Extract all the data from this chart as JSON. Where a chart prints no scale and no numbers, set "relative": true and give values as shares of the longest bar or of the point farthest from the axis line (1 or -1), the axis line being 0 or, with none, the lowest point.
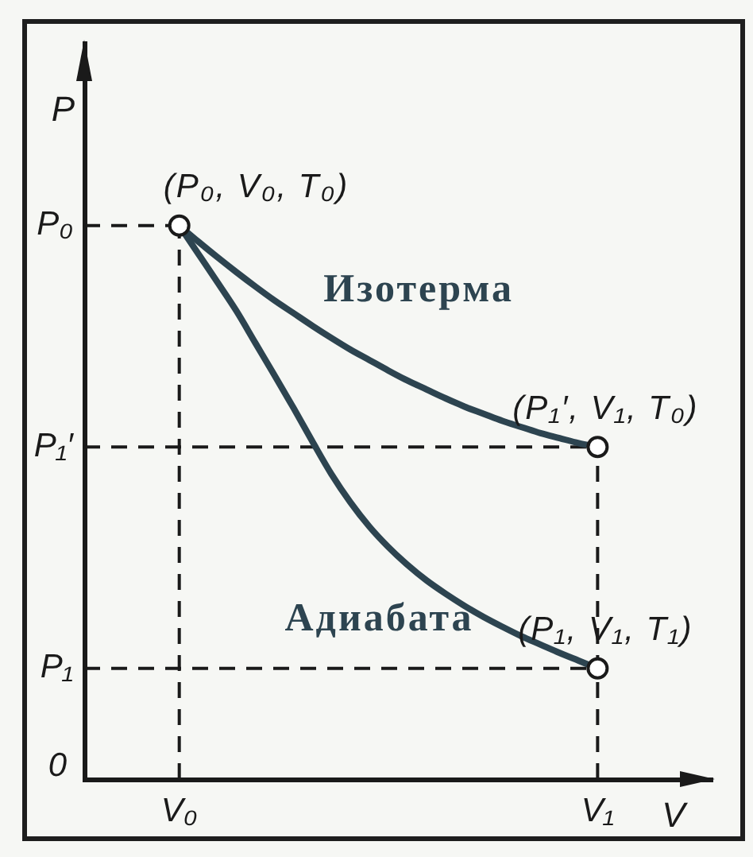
{
  "chart_data": {
    "type": "line",
    "relative": true,
    "xlabel": "V",
    "ylabel": "P",
    "categories": [
      null,
      null,
      null,
      null,
      null,
      "V₀",
      null,
      null,
      null,
      null,
      null,
      null,
      null,
      null,
      null,
      null,
      null,
      null,
      null,
      null,
      null,
      null,
      null,
      null,
      null,
      null,
      null,
      "V₁",
      null,
      null,
      null,
      null,
      null,
      null
    ],
    "series": [
      {
        "name": "Изотерма",
        "color": "#2d4450",
        "values": [
          null,
          null,
          null,
          null,
          null,
          1,
          0.971,
          0.943,
          0.916,
          0.89,
          0.865,
          0.842,
          0.819,
          0.797,
          0.776,
          0.757,
          0.738,
          0.72,
          0.704,
          0.688,
          0.673,
          0.66,
          0.647,
          0.636,
          0.625,
          0.616,
          0.607,
          0.6,
          null,
          null,
          null,
          null,
          null,
          null
        ]
      },
      {
        "name": "Адиабата",
        "color": "#2d4450",
        "values": [
          null,
          null,
          null,
          null,
          null,
          1,
          0.949,
          0.898,
          0.846,
          0.788,
          0.73,
          0.671,
          0.61,
          0.551,
          0.5,
          0.456,
          0.419,
          0.387,
          0.359,
          0.335,
          0.313,
          0.293,
          0.275,
          0.258,
          0.243,
          0.228,
          0.214,
          0.2,
          null,
          null,
          null,
          null,
          null,
          null
        ]
      },
      {
        "type": "line",
        "color": "#1a1a1a",
        "line_style": "dashed",
        "x": [
          "V₁",
          "V₁"
        ],
        "values": [
          0,
          0.6
        ]
      },
      {
        "type": "scatter",
        "color": "#1a1a1a",
        "marker": "circle",
        "x": [
          "V₀",
          "V₁",
          "V₁"
        ],
        "values": [
          1,
          0.6,
          0.2
        ]
      }
    ],
    "ref_lines": [
      {
        "axis": "y",
        "value": 1,
        "label": "P₀",
        "color": "#1a1a1a",
        "line_style": "dashed"
      },
      {
        "axis": "y",
        "value": 0.6,
        "label": "P₁′",
        "color": "#1a1a1a",
        "line_style": "dashed"
      },
      {
        "axis": "y",
        "value": 0.2,
        "label": "P₁",
        "color": "#1a1a1a",
        "line_style": "dashed"
      },
      {
        "axis": "x",
        "value": "V₀",
        "color": "#1a1a1a",
        "line_style": "dashed"
      }
    ],
    "annotations": [
      "0",
      {
        "text": "(P₀, V₀, T₀)",
        "x": "V₀",
        "y": 1
      },
      {
        "text": "(P₁′, V₁, T₀)",
        "x": "V₁",
        "y": 0.6
      },
      {
        "text": "(P₁, V₁, T₁)",
        "x": "V₁",
        "y": 0.2
      }
    ]
  }
}
